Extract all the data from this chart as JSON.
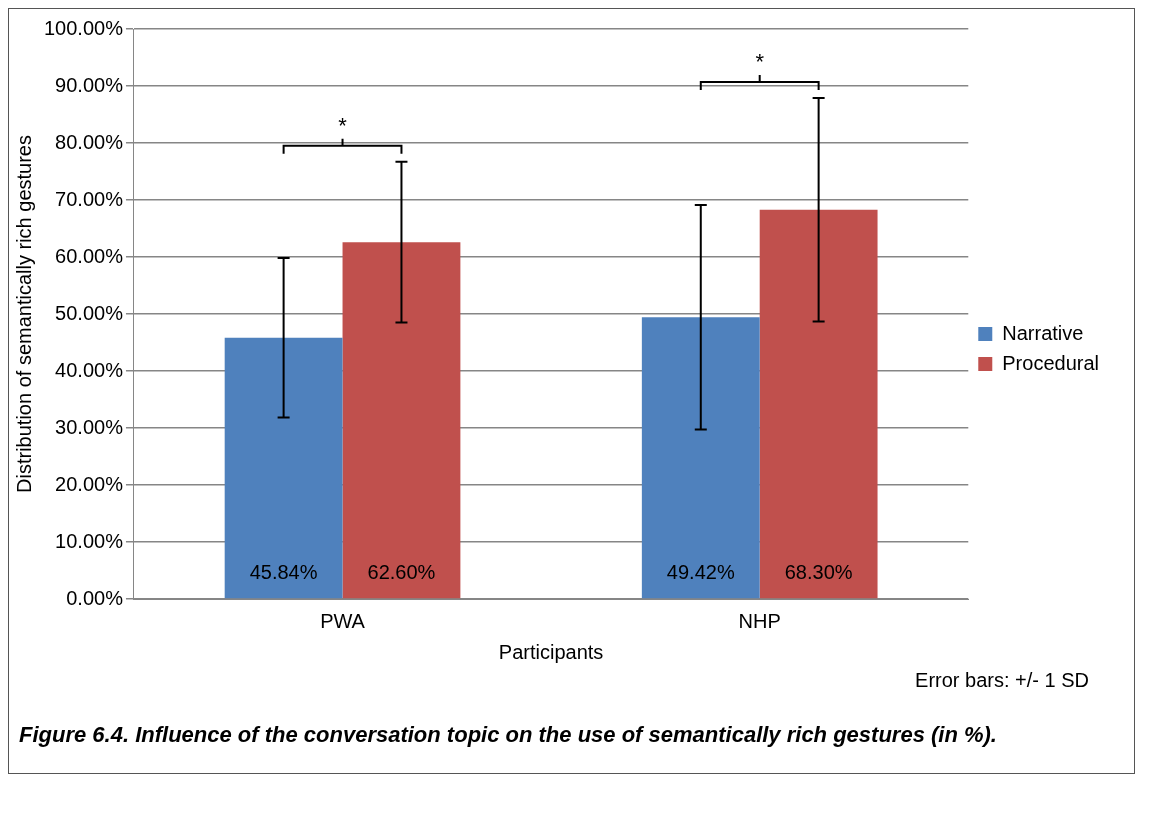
{
  "chart_data": {
    "type": "bar",
    "title": "Figure 6.4. Influence of the conversation topic on the use of semantically rich gestures (in %).",
    "xlabel": "Participants",
    "ylabel": "Distribution of semantically rich gestures",
    "categories": [
      "PWA",
      "NHP"
    ],
    "series": [
      {
        "name": "Narrative",
        "color": "#4f81bd",
        "values": [
          45.84,
          49.42
        ],
        "errors": [
          14,
          19.7
        ],
        "value_labels": [
          "45.84%",
          "49.42%"
        ]
      },
      {
        "name": "Procedural",
        "color": "#c0504d",
        "values": [
          62.6,
          68.3
        ],
        "errors": [
          14.1,
          19.6
        ],
        "value_labels": [
          "62.60%",
          "68.30%"
        ]
      }
    ],
    "ylim": [
      0,
      100
    ],
    "yticks": [
      {
        "value": 0,
        "label": "0.00%"
      },
      {
        "value": 10,
        "label": "10.00%"
      },
      {
        "value": 20,
        "label": "20.00%"
      },
      {
        "value": 30,
        "label": "30.00%"
      },
      {
        "value": 40,
        "label": "40.00%"
      },
      {
        "value": 50,
        "label": "50.00%"
      },
      {
        "value": 60,
        "label": "60.00%"
      },
      {
        "value": 70,
        "label": "70.00%"
      },
      {
        "value": 80,
        "label": "80.00%"
      },
      {
        "value": 90,
        "label": "90.00%"
      },
      {
        "value": 100,
        "label": "100.00%"
      }
    ],
    "grid": "y",
    "legend": "right",
    "annotations": [
      "*",
      "*",
      "Error bars: +/- 1 SD"
    ]
  }
}
